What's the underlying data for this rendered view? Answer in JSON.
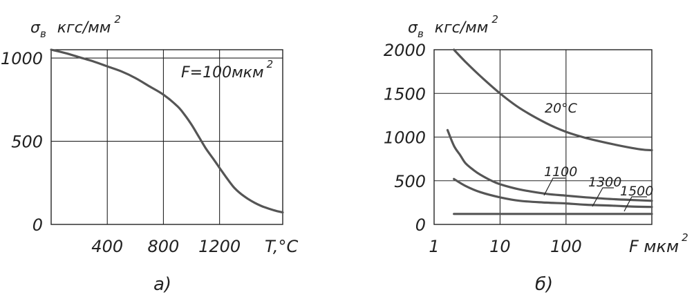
{
  "chart_data": [
    {
      "type": "line",
      "panel_label": "а)",
      "ylabel_sym": "σ",
      "ylabel_sub": "в",
      "ylabel_unit": "кгс/мм",
      "ylabel_exp": "2",
      "xlabel": "T,°C",
      "annotation": {
        "text": "F=100мкм",
        "exp": "2"
      },
      "xlim": [
        0,
        1650
      ],
      "ylim": [
        0,
        1050
      ],
      "x_ticks": [
        400,
        800,
        1200
      ],
      "x_tick_labels": [
        "400",
        "800",
        "1200"
      ],
      "y_ticks": [
        0,
        500,
        1000
      ],
      "y_tick_labels": [
        "0",
        "500",
        "1000"
      ],
      "grid": true,
      "series": [
        {
          "x": [
            0,
            100,
            200,
            300,
            400,
            500,
            600,
            700,
            800,
            900,
            950,
            1000,
            1050,
            1100,
            1150,
            1200,
            1250,
            1300,
            1350,
            1400,
            1450,
            1500,
            1550,
            1600,
            1650
          ],
          "values": [
            1050,
            1030,
            1005,
            980,
            950,
            920,
            880,
            830,
            780,
            710,
            660,
            600,
            530,
            460,
            400,
            340,
            280,
            225,
            185,
            155,
            130,
            110,
            95,
            82,
            72
          ]
        }
      ]
    },
    {
      "type": "line",
      "panel_label": "б)",
      "ylabel_sym": "σ",
      "ylabel_sub": "в",
      "ylabel_unit": "кгс/мм",
      "ylabel_exp": "2",
      "xlabel": "F мкм",
      "xlabel_exp": "2",
      "x_scale": "log",
      "xlim": [
        1,
        2000
      ],
      "ylim": [
        0,
        2000
      ],
      "x_ticks": [
        1,
        10,
        100
      ],
      "x_tick_labels": [
        "1",
        "10",
        "100"
      ],
      "y_ticks": [
        0,
        500,
        1000,
        1500,
        2000
      ],
      "y_tick_labels": [
        "0",
        "500",
        "1000",
        "1500",
        "2000"
      ],
      "grid": true,
      "series": [
        {
          "name": "20°C",
          "x": [
            2,
            3,
            5,
            10,
            20,
            50,
            100,
            200,
            500,
            1000,
            1500,
            2000
          ],
          "values": [
            2000,
            1860,
            1700,
            1500,
            1330,
            1160,
            1060,
            990,
            920,
            875,
            855,
            850
          ]
        },
        {
          "name": "1100",
          "x": [
            1.6,
            2,
            2.5,
            3,
            4,
            5,
            7,
            10,
            20,
            50,
            100,
            200,
            500,
            1000,
            2000
          ],
          "values": [
            1080,
            900,
            790,
            700,
            620,
            570,
            510,
            460,
            400,
            350,
            330,
            310,
            290,
            280,
            270
          ]
        },
        {
          "name": "1300",
          "x": [
            2,
            3,
            5,
            10,
            20,
            50,
            100,
            200,
            500,
            1000,
            2000
          ],
          "values": [
            520,
            440,
            370,
            310,
            270,
            250,
            240,
            225,
            215,
            205,
            200
          ]
        },
        {
          "name": "1500",
          "x": [
            2,
            5,
            10,
            100,
            1000,
            2000
          ],
          "values": [
            120,
            120,
            120,
            120,
            120,
            120
          ]
        }
      ]
    }
  ]
}
